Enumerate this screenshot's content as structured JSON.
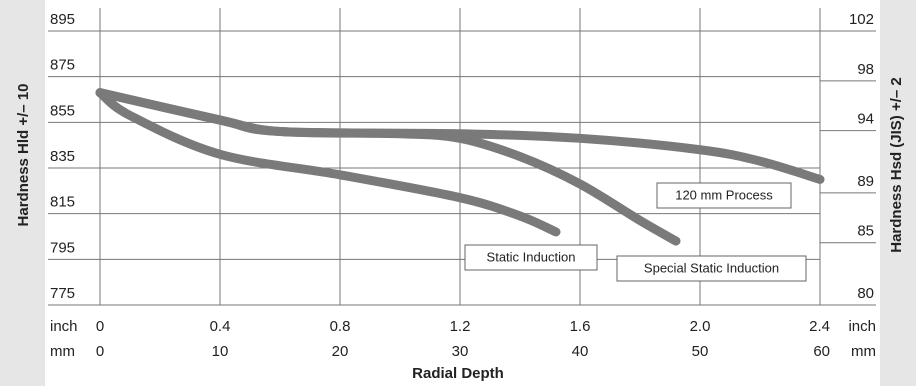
{
  "chart_data": {
    "type": "line",
    "ylabel": "Hardness Hld +/– 10",
    "y2label": "Hardness Hsd (JIS) +/– 2",
    "xlabel": "Radial Depth",
    "xunit": "inch",
    "x2unit": "mm",
    "xlim": [
      0,
      2.4
    ],
    "xticks": [
      0,
      0.4,
      0.8,
      1.2,
      1.6,
      {
        "value": 2,
        "label": "2.0"
      },
      2.4
    ],
    "x2lim": [
      0,
      60
    ],
    "x2ticks": [
      0,
      10,
      20,
      30,
      40,
      50,
      60
    ],
    "ylim": [
      775,
      895
    ],
    "yticks": [
      775,
      795,
      815,
      835,
      855,
      875,
      895
    ],
    "y2lim": [
      80,
      102
    ],
    "y2ticks": [
      80,
      85,
      89,
      94,
      98,
      102
    ],
    "grid": true,
    "series": [
      {
        "name": "Static Induction",
        "color": "#7a7a7a",
        "x": [
          0,
          0.1,
          0.4,
          0.8,
          1.2,
          1.4,
          1.52
        ],
        "values": [
          868,
          858,
          841,
          832,
          822,
          814,
          807
        ]
      },
      {
        "name": "Special Static Induction",
        "color": "#7a7a7a",
        "x": [
          0,
          0.4,
          0.6,
          1.0,
          1.2,
          1.4,
          1.6,
          1.8,
          1.92
        ],
        "values": [
          868,
          856,
          851,
          850,
          848,
          840,
          828,
          812,
          803
        ]
      },
      {
        "name": "120 mm Process",
        "color": "#7a7a7a",
        "x": [
          0,
          0.4,
          0.6,
          1.2,
          1.6,
          2.0,
          2.2,
          2.4
        ],
        "values": [
          868,
          856,
          851,
          850,
          848,
          843,
          838,
          830
        ]
      }
    ]
  }
}
